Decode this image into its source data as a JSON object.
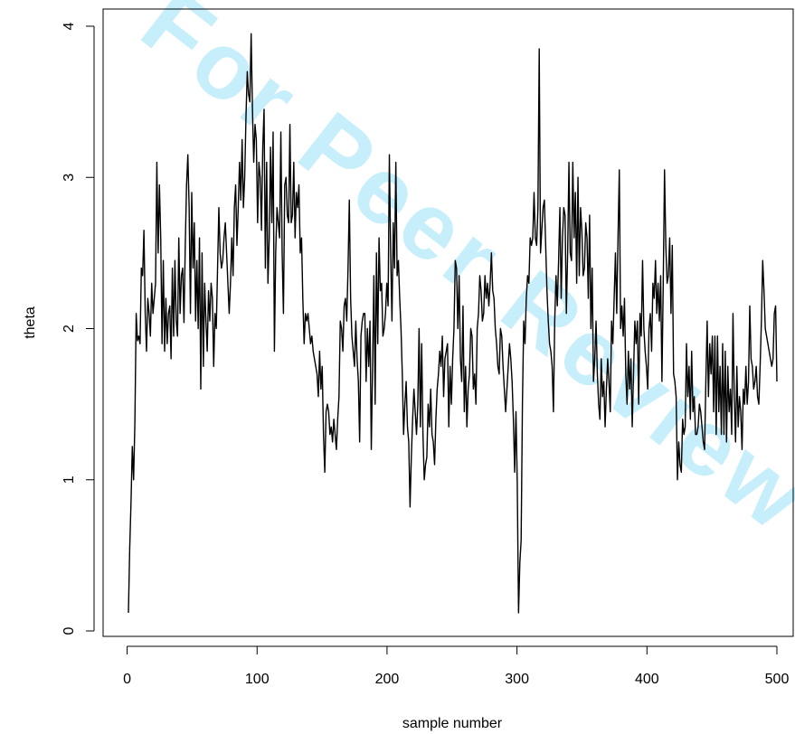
{
  "watermark": {
    "text": "For Peer Review Only",
    "color": "#00b4f0"
  },
  "chart_data": {
    "type": "line",
    "title": "",
    "xlabel": "sample number",
    "ylabel": "theta",
    "xlim": [
      1,
      500
    ],
    "ylim": [
      0,
      4
    ],
    "xticks": [
      0,
      100,
      200,
      300,
      400,
      500
    ],
    "yticks": [
      0,
      1,
      2,
      3,
      4
    ],
    "grid": false,
    "legend": "none",
    "line_color": "#000000",
    "series": [
      {
        "values": [
          0.12,
          0.55,
          0.85,
          1.22,
          1.0,
          1.38,
          2.1,
          1.92,
          1.95,
          1.9,
          2.4,
          2.35,
          2.65,
          2.1,
          1.85,
          2.2,
          2.1,
          1.95,
          2.3,
          2.1,
          2.2,
          2.3,
          3.1,
          2.5,
          2.95,
          2.6,
          1.9,
          2.45,
          1.85,
          2.2,
          1.9,
          2.1,
          2.15,
          1.8,
          2.4,
          1.95,
          2.45,
          2.05,
          1.95,
          2.6,
          2.1,
          2.35,
          2.4,
          2.04,
          2.55,
          2.95,
          3.15,
          2.8,
          2.1,
          2.9,
          2.4,
          2.7,
          2.05,
          2.45,
          2.0,
          2.6,
          1.6,
          2.5,
          1.75,
          2.3,
          2.05,
          1.85,
          2.25,
          2.05,
          2.3,
          2.2,
          1.75,
          2.1,
          2.0,
          2.4,
          2.8,
          2.5,
          2.4,
          2.45,
          2.6,
          2.7,
          2.5,
          2.3,
          2.1,
          2.3,
          2.6,
          2.35,
          2.8,
          2.95,
          2.55,
          2.8,
          3.1,
          2.85,
          3.25,
          2.8,
          3.0,
          3.4,
          3.7,
          3.55,
          3.5,
          3.95,
          3.45,
          3.1,
          3.35,
          3.25,
          2.7,
          3.1,
          3.0,
          2.65,
          3.2,
          3.45,
          2.4,
          3.1,
          2.3,
          2.6,
          3.2,
          2.7,
          3.3,
          1.85,
          2.5,
          2.8,
          2.7,
          2.6,
          3.3,
          2.5,
          2.1,
          2.95,
          3.0,
          2.75,
          2.7,
          3.35,
          2.7,
          2.75,
          3.1,
          2.6,
          2.9,
          2.8,
          2.95,
          2.5,
          2.6,
          2.2,
          1.9,
          2.1,
          2.05,
          2.1,
          2.0,
          1.9,
          1.95,
          1.85,
          1.8,
          1.75,
          1.7,
          1.55,
          1.85,
          1.6,
          1.75,
          1.3,
          1.05,
          1.45,
          1.5,
          1.45,
          1.3,
          1.35,
          1.25,
          1.4,
          1.3,
          1.2,
          1.4,
          1.55,
          2.05,
          2.0,
          1.85,
          2.15,
          2.2,
          2.05,
          2.4,
          2.85,
          2.2,
          1.95,
          1.85,
          1.75,
          2.05,
          1.8,
          1.65,
          1.25,
          1.95,
          2.05,
          2.1,
          2.1,
          1.65,
          2.0,
          1.75,
          2.05,
          1.2,
          1.75,
          2.35,
          1.5,
          2.5,
          1.9,
          2.6,
          2.25,
          2.3,
          1.95,
          2.0,
          2.1,
          2.3,
          2.15,
          3.15,
          2.5,
          2.05,
          2.7,
          2.4,
          3.1,
          2.35,
          2.45,
          2.2,
          2.0,
          1.7,
          1.3,
          1.5,
          1.65,
          1.35,
          1.25,
          0.82,
          1.15,
          1.4,
          1.6,
          1.45,
          1.3,
          1.5,
          2.0,
          1.35,
          1.9,
          1.3,
          1.0,
          1.1,
          1.15,
          1.5,
          1.35,
          1.6,
          1.3,
          1.25,
          1.1,
          1.4,
          1.6,
          1.7,
          1.85,
          1.75,
          1.95,
          1.55,
          1.8,
          1.85,
          1.9,
          1.35,
          1.75,
          1.5,
          1.8,
          2.0,
          2.45,
          2.4,
          2.0,
          2.35,
          1.8,
          1.65,
          2.15,
          1.45,
          1.75,
          1.35,
          1.6,
          1.7,
          2.0,
          1.95,
          1.6,
          1.7,
          1.5,
          2.0,
          2.1,
          2.35,
          2.25,
          2.05,
          2.1,
          2.35,
          2.2,
          2.3,
          2.15,
          2.3,
          2.5,
          2.25,
          2.2,
          2.0,
          1.9,
          1.75,
          1.7,
          2.0,
          1.95,
          1.75,
          1.6,
          1.45,
          1.6,
          1.75,
          1.9,
          1.8,
          1.65,
          1.4,
          1.05,
          1.45,
          0.98,
          0.12,
          0.45,
          0.6,
          1.5,
          2.05,
          1.9,
          2.2,
          2.35,
          2.3,
          2.6,
          2.55,
          2.6,
          2.9,
          2.6,
          2.55,
          2.8,
          3.85,
          2.5,
          2.65,
          2.8,
          2.85,
          2.55,
          2.25,
          2.05,
          1.9,
          1.85,
          1.75,
          1.45,
          2.05,
          2.35,
          2.15,
          2.45,
          2.8,
          2.2,
          2.6,
          2.8,
          2.75,
          2.1,
          2.5,
          3.1,
          2.5,
          2.45,
          3.1,
          2.6,
          2.9,
          2.3,
          3.0,
          2.35,
          2.8,
          2.65,
          2.35,
          2.4,
          2.7,
          2.6,
          2.2,
          2.75,
          2.0,
          2.4,
          1.65,
          1.8,
          2.05,
          1.7,
          1.5,
          1.4,
          1.8,
          1.55,
          1.65,
          1.35,
          1.6,
          1.8,
          1.65,
          1.45,
          2.05,
          1.9,
          2.2,
          2.5,
          2.1,
          2.6,
          3.05,
          2.0,
          2.15,
          1.95,
          2.2,
          1.7,
          1.5,
          1.85,
          1.6,
          1.8,
          1.35,
          1.7,
          2.05,
          1.9,
          2.05,
          1.5,
          2.1,
          1.95,
          2.45,
          2.0,
          1.85,
          1.75,
          1.6,
          2.0,
          2.1,
          1.85,
          2.3,
          2.2,
          2.45,
          2.1,
          2.3,
          2.05,
          2.35,
          1.65,
          2.3,
          3.05,
          2.55,
          2.3,
          2.35,
          2.6,
          2.1,
          2.55,
          1.7,
          1.65,
          1.55,
          1.0,
          1.25,
          1.1,
          1.05,
          1.4,
          1.3,
          1.35,
          1.9,
          1.55,
          1.75,
          1.4,
          1.85,
          1.45,
          1.55,
          1.3,
          1.3,
          1.35,
          1.5,
          1.45,
          1.35,
          1.25,
          1.2,
          1.65,
          2.05,
          1.55,
          1.9,
          1.7,
          1.95,
          1.45,
          1.95,
          1.3,
          1.95,
          1.45,
          1.75,
          1.3,
          1.9,
          1.3,
          1.85,
          1.25,
          1.75,
          1.45,
          1.6,
          1.3,
          2.1,
          1.55,
          1.25,
          1.75,
          1.35,
          1.55,
          1.45,
          1.2,
          1.6,
          1.5,
          1.75,
          1.5,
          1.65,
          2.15,
          1.8,
          1.75,
          1.6,
          1.65,
          1.75,
          1.55,
          1.5,
          1.75,
          2.05,
          2.45,
          2.25,
          2.0,
          1.95,
          1.9,
          1.85,
          1.8,
          1.75,
          1.8,
          2.1,
          2.15,
          1.65
        ]
      }
    ]
  }
}
